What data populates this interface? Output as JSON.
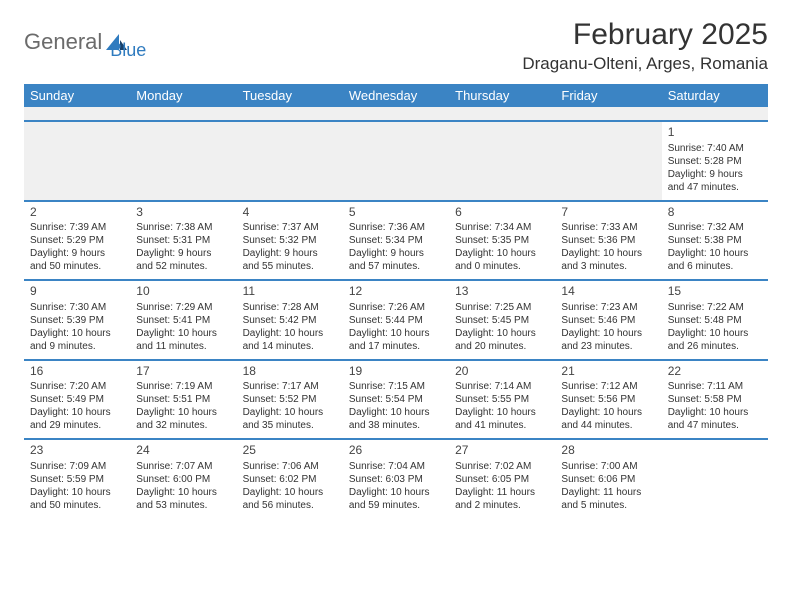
{
  "brand": {
    "part1": "General",
    "part2": "Blue"
  },
  "title": "February 2025",
  "location": "Draganu-Olteni, Arges, Romania",
  "colors": {
    "header_bg": "#3b84c4",
    "header_fg": "#ffffff",
    "row_divider": "#3b84c4",
    "blank_bg": "#f0f0f0",
    "text": "#333333",
    "brand_gray": "#6b6b6b",
    "brand_blue": "#2f7bbf"
  },
  "fonts": {
    "title_pt": 30,
    "location_pt": 17,
    "dayhead_pt": 13,
    "daynum_pt": 12,
    "cell_pt": 10
  },
  "dayHeaders": [
    "Sunday",
    "Monday",
    "Tuesday",
    "Wednesday",
    "Thursday",
    "Friday",
    "Saturday"
  ],
  "days": {
    "1": {
      "sunrise": "7:40 AM",
      "sunset": "5:28 PM",
      "daylight": "9 hours and 47 minutes."
    },
    "2": {
      "sunrise": "7:39 AM",
      "sunset": "5:29 PM",
      "daylight": "9 hours and 50 minutes."
    },
    "3": {
      "sunrise": "7:38 AM",
      "sunset": "5:31 PM",
      "daylight": "9 hours and 52 minutes."
    },
    "4": {
      "sunrise": "7:37 AM",
      "sunset": "5:32 PM",
      "daylight": "9 hours and 55 minutes."
    },
    "5": {
      "sunrise": "7:36 AM",
      "sunset": "5:34 PM",
      "daylight": "9 hours and 57 minutes."
    },
    "6": {
      "sunrise": "7:34 AM",
      "sunset": "5:35 PM",
      "daylight": "10 hours and 0 minutes."
    },
    "7": {
      "sunrise": "7:33 AM",
      "sunset": "5:36 PM",
      "daylight": "10 hours and 3 minutes."
    },
    "8": {
      "sunrise": "7:32 AM",
      "sunset": "5:38 PM",
      "daylight": "10 hours and 6 minutes."
    },
    "9": {
      "sunrise": "7:30 AM",
      "sunset": "5:39 PM",
      "daylight": "10 hours and 9 minutes."
    },
    "10": {
      "sunrise": "7:29 AM",
      "sunset": "5:41 PM",
      "daylight": "10 hours and 11 minutes."
    },
    "11": {
      "sunrise": "7:28 AM",
      "sunset": "5:42 PM",
      "daylight": "10 hours and 14 minutes."
    },
    "12": {
      "sunrise": "7:26 AM",
      "sunset": "5:44 PM",
      "daylight": "10 hours and 17 minutes."
    },
    "13": {
      "sunrise": "7:25 AM",
      "sunset": "5:45 PM",
      "daylight": "10 hours and 20 minutes."
    },
    "14": {
      "sunrise": "7:23 AM",
      "sunset": "5:46 PM",
      "daylight": "10 hours and 23 minutes."
    },
    "15": {
      "sunrise": "7:22 AM",
      "sunset": "5:48 PM",
      "daylight": "10 hours and 26 minutes."
    },
    "16": {
      "sunrise": "7:20 AM",
      "sunset": "5:49 PM",
      "daylight": "10 hours and 29 minutes."
    },
    "17": {
      "sunrise": "7:19 AM",
      "sunset": "5:51 PM",
      "daylight": "10 hours and 32 minutes."
    },
    "18": {
      "sunrise": "7:17 AM",
      "sunset": "5:52 PM",
      "daylight": "10 hours and 35 minutes."
    },
    "19": {
      "sunrise": "7:15 AM",
      "sunset": "5:54 PM",
      "daylight": "10 hours and 38 minutes."
    },
    "20": {
      "sunrise": "7:14 AM",
      "sunset": "5:55 PM",
      "daylight": "10 hours and 41 minutes."
    },
    "21": {
      "sunrise": "7:12 AM",
      "sunset": "5:56 PM",
      "daylight": "10 hours and 44 minutes."
    },
    "22": {
      "sunrise": "7:11 AM",
      "sunset": "5:58 PM",
      "daylight": "10 hours and 47 minutes."
    },
    "23": {
      "sunrise": "7:09 AM",
      "sunset": "5:59 PM",
      "daylight": "10 hours and 50 minutes."
    },
    "24": {
      "sunrise": "7:07 AM",
      "sunset": "6:00 PM",
      "daylight": "10 hours and 53 minutes."
    },
    "25": {
      "sunrise": "7:06 AM",
      "sunset": "6:02 PM",
      "daylight": "10 hours and 56 minutes."
    },
    "26": {
      "sunrise": "7:04 AM",
      "sunset": "6:03 PM",
      "daylight": "10 hours and 59 minutes."
    },
    "27": {
      "sunrise": "7:02 AM",
      "sunset": "6:05 PM",
      "daylight": "11 hours and 2 minutes."
    },
    "28": {
      "sunrise": "7:00 AM",
      "sunset": "6:06 PM",
      "daylight": "11 hours and 5 minutes."
    }
  },
  "labels": {
    "sunrise": "Sunrise: ",
    "sunset": "Sunset: ",
    "daylight": "Daylight: "
  },
  "grid": [
    [
      null,
      null,
      null,
      null,
      null,
      null,
      "1"
    ],
    [
      "2",
      "3",
      "4",
      "5",
      "6",
      "7",
      "8"
    ],
    [
      "9",
      "10",
      "11",
      "12",
      "13",
      "14",
      "15"
    ],
    [
      "16",
      "17",
      "18",
      "19",
      "20",
      "21",
      "22"
    ],
    [
      "23",
      "24",
      "25",
      "26",
      "27",
      "28",
      null
    ]
  ]
}
